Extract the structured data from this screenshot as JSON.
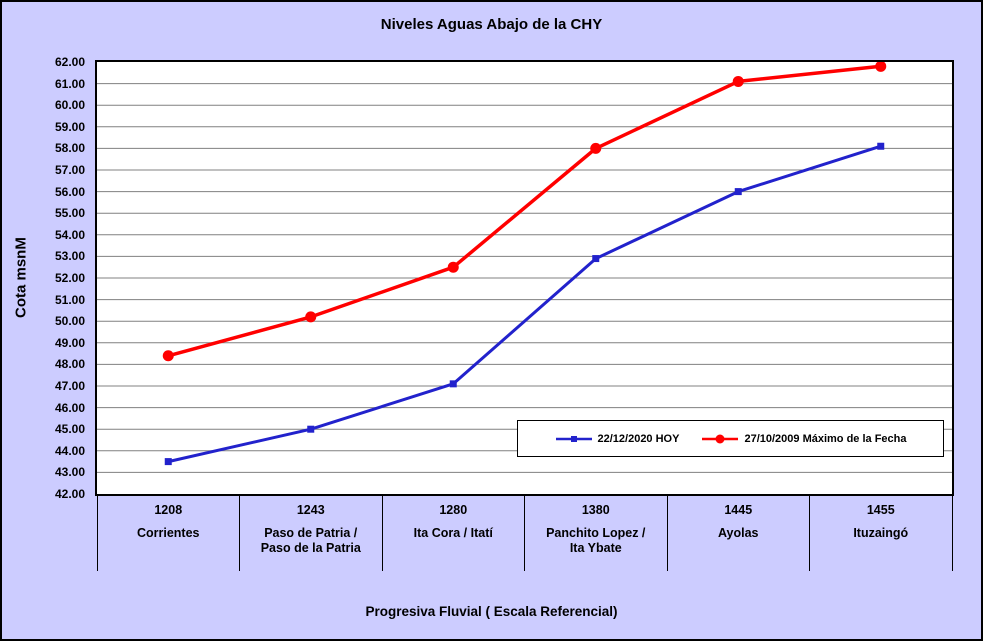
{
  "title": "Niveles Aguas Abajo de la CHY",
  "chart_data": {
    "type": "line",
    "title": "Niveles Aguas Abajo de la CHY",
    "xlabel": "Progresiva Fluvial ( Escala Referencial)",
    "ylabel": "Cota msnM",
    "ylim": [
      42,
      62
    ],
    "ytick_step": 1,
    "ytick_decimals": 2,
    "grid": true,
    "legend_position": "inside-bottom-right",
    "categories": [
      {
        "progresiva": "1208",
        "name": "Corrientes",
        "name_lines": [
          "Corrientes"
        ]
      },
      {
        "progresiva": "1243",
        "name": "Paso de Patria / Paso de la Patria",
        "name_lines": [
          "Paso de Patria /",
          "Paso de la Patria"
        ]
      },
      {
        "progresiva": "1280",
        "name": "Ita Cora / Itatí",
        "name_lines": [
          "Ita Cora / Itatí"
        ]
      },
      {
        "progresiva": "1380",
        "name": "Panchito Lopez / Ita Ybate",
        "name_lines": [
          "Panchito Lopez /",
          "Ita Ybate"
        ]
      },
      {
        "progresiva": "1445",
        "name": "Ayolas",
        "name_lines": [
          "Ayolas"
        ]
      },
      {
        "progresiva": "1455",
        "name": "Ituzaingó",
        "name_lines": [
          "Ituzaingó"
        ]
      }
    ],
    "series": [
      {
        "name": "22/12/2020 HOY",
        "color": "#2222CC",
        "marker": "square",
        "values": [
          43.5,
          45.0,
          47.1,
          52.9,
          56.0,
          58.1
        ]
      },
      {
        "name": "27/10/2009 Máximo de la Fecha",
        "color": "#FF0000",
        "marker": "circle",
        "values": [
          48.4,
          50.2,
          52.5,
          58.0,
          61.1,
          61.8
        ]
      }
    ]
  },
  "colors": {
    "background": "#CCCCFF",
    "plot_background": "#FFFFFF",
    "gridline": "#808080",
    "border": "#000000",
    "text": "#000000"
  }
}
